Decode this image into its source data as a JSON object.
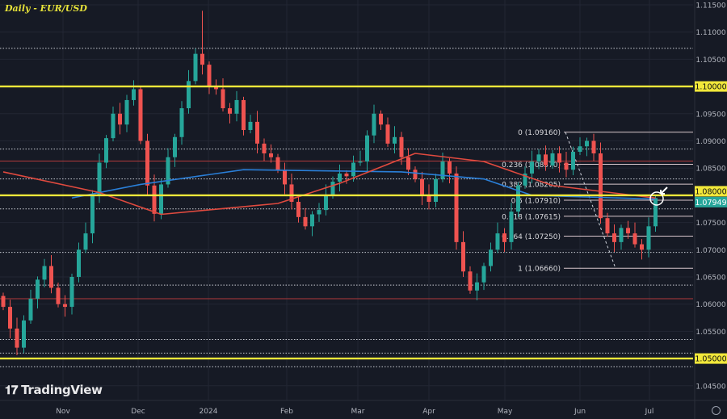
{
  "header": {
    "title": "Daily - EUR/USD"
  },
  "branding": {
    "logo_text": "TradingView"
  },
  "colors": {
    "background": "#161a25",
    "up": "#26a69a",
    "down": "#ef5350",
    "key_level": "#f2e83a",
    "ma_fast": "#e04a3f",
    "ma_slow": "#2a7fd8",
    "current_price": "#26a69a"
  },
  "chart_data": {
    "type": "candlestick",
    "title": "Daily - EUR/USD",
    "ylim": [
      1.045,
      1.115
    ],
    "y_ticks": [
      "1.11500",
      "1.11000",
      "1.10500",
      "1.10000",
      "1.09500",
      "1.09000",
      "1.08500",
      "1.08000",
      "1.07500",
      "1.07000",
      "1.06500",
      "1.06000",
      "1.05500",
      "1.05000",
      "1.04500"
    ],
    "x_ticks": [
      "Nov",
      "Dec",
      "2024",
      "Feb",
      "Mar",
      "Apr",
      "May",
      "Jun",
      "Jul"
    ],
    "closes": [
      1.0595,
      1.0555,
      1.052,
      1.057,
      1.061,
      1.0645,
      1.067,
      1.063,
      1.06,
      1.0595,
      1.065,
      1.07,
      1.073,
      1.08,
      1.086,
      1.0905,
      1.095,
      1.093,
      1.0975,
      1.0995,
      1.09,
      1.0818,
      1.0766,
      1.082,
      1.087,
      1.0907,
      1.096,
      1.101,
      1.106,
      1.104,
      1.1,
      1.0995,
      1.096,
      1.095,
      1.0975,
      1.092,
      1.0935,
      1.0895,
      1.0877,
      1.087,
      1.0847,
      1.082,
      1.0788,
      1.076,
      1.0743,
      1.0765,
      1.0773,
      1.08,
      1.0825,
      1.084,
      1.0835,
      1.086,
      1.0862,
      1.091,
      1.095,
      1.093,
      1.0895,
      1.0907,
      1.087,
      1.0847,
      1.083,
      1.08,
      1.0788,
      1.083,
      1.0862,
      1.084,
      1.0714,
      1.066,
      1.0625,
      1.064,
      1.067,
      1.07,
      1.073,
      1.0714,
      1.077,
      1.0818,
      1.084,
      1.0862,
      1.0875,
      1.0855,
      1.0877,
      1.086,
      1.0847,
      1.088,
      1.089,
      1.09,
      1.0877,
      1.0758,
      1.073,
      1.0714,
      1.074,
      1.073,
      1.071,
      1.07,
      1.0743,
      1.0795
    ],
    "ma_fast": [
      [
        0,
        1.0843
      ],
      [
        14,
        1.0805
      ],
      [
        23,
        1.0765
      ],
      [
        40,
        1.0785
      ],
      [
        49,
        1.0822
      ],
      [
        60,
        1.0877
      ],
      [
        70,
        1.0862
      ],
      [
        80,
        1.0818
      ],
      [
        95,
        1.0795
      ]
    ],
    "ma_slow": [
      [
        10,
        1.0795
      ],
      [
        20,
        1.082
      ],
      [
        35,
        1.0847
      ],
      [
        58,
        1.0843
      ],
      [
        70,
        1.083
      ],
      [
        77,
        1.08
      ],
      [
        95,
        1.0793
      ]
    ],
    "key_levels": [
      {
        "price": 1.1,
        "label": "1.10000"
      },
      {
        "price": 1.08,
        "label": "1.08000"
      },
      {
        "price": 1.05,
        "label": "1.05000"
      }
    ],
    "current_price": {
      "price": 1.07949,
      "label": "1.07949"
    },
    "resistance_lines": [
      1.0863,
      1.061
    ],
    "dotted_lines": [
      1.107,
      1.0885,
      1.083,
      1.0775,
      1.0695,
      1.0635,
      1.0535,
      1.051,
      1.0485
    ],
    "fibonacci": [
      {
        "ratio": "0",
        "price": 1.0916,
        "label": "0 (1.09160)"
      },
      {
        "ratio": "0.236",
        "price": 1.0857,
        "label": "0.236 (1.08570)"
      },
      {
        "ratio": "0.382",
        "price": 1.08205,
        "label": "0.382 (1.08205)"
      },
      {
        "ratio": "0.5",
        "price": 1.0791,
        "label": "0.5 (1.07910)"
      },
      {
        "ratio": "0.618",
        "price": 1.07615,
        "label": "0.618 (1.07615)"
      },
      {
        "ratio": "0.764",
        "price": 1.0725,
        "label": "0.764 (1.07250)"
      },
      {
        "ratio": "1",
        "price": 1.0666,
        "label": "1 (1.06660)"
      }
    ]
  }
}
